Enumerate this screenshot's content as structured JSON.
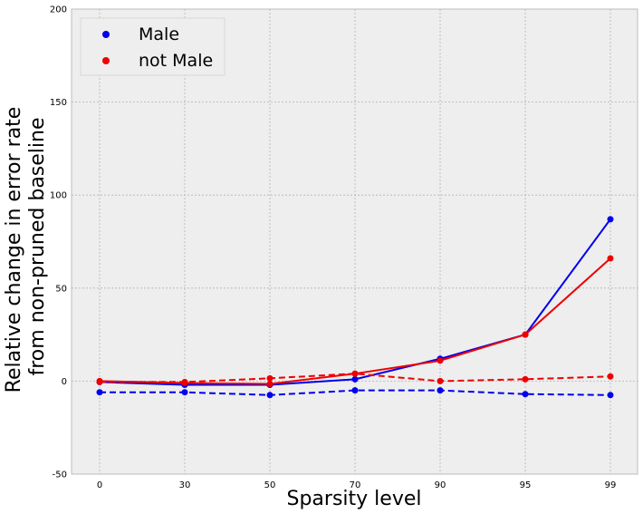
{
  "chart_data": {
    "type": "line",
    "title": "",
    "xlabel": "Sparsity level",
    "ylabel_lines": [
      "Relative change in error rate",
      "from non-pruned baseline"
    ],
    "categories": [
      "0",
      "30",
      "50",
      "70",
      "90",
      "95",
      "99"
    ],
    "ylim": [
      -50,
      200
    ],
    "yticks": [
      -50,
      0,
      50,
      100,
      150,
      200
    ],
    "grid": true,
    "legend_position": "top-left",
    "series": [
      {
        "name": "Male",
        "color": "#0000ee",
        "style": "solid",
        "show_in_legend": true,
        "values": [
          -0.5,
          -2,
          -2,
          1,
          12,
          25,
          87
        ]
      },
      {
        "name": "not Male",
        "color": "#ee0000",
        "style": "solid",
        "show_in_legend": true,
        "values": [
          0,
          -1,
          -1.5,
          4,
          11,
          25,
          66
        ]
      },
      {
        "name": "Male (dashed)",
        "color": "#0000ee",
        "style": "dashed",
        "show_in_legend": false,
        "values": [
          -6,
          -6,
          -7.5,
          -5,
          -5,
          -7,
          -7.5
        ]
      },
      {
        "name": "not Male (dashed)",
        "color": "#ee0000",
        "style": "dashed",
        "show_in_legend": false,
        "values": [
          -0.5,
          -0.5,
          1.5,
          4,
          0,
          1,
          2.5
        ]
      }
    ]
  }
}
